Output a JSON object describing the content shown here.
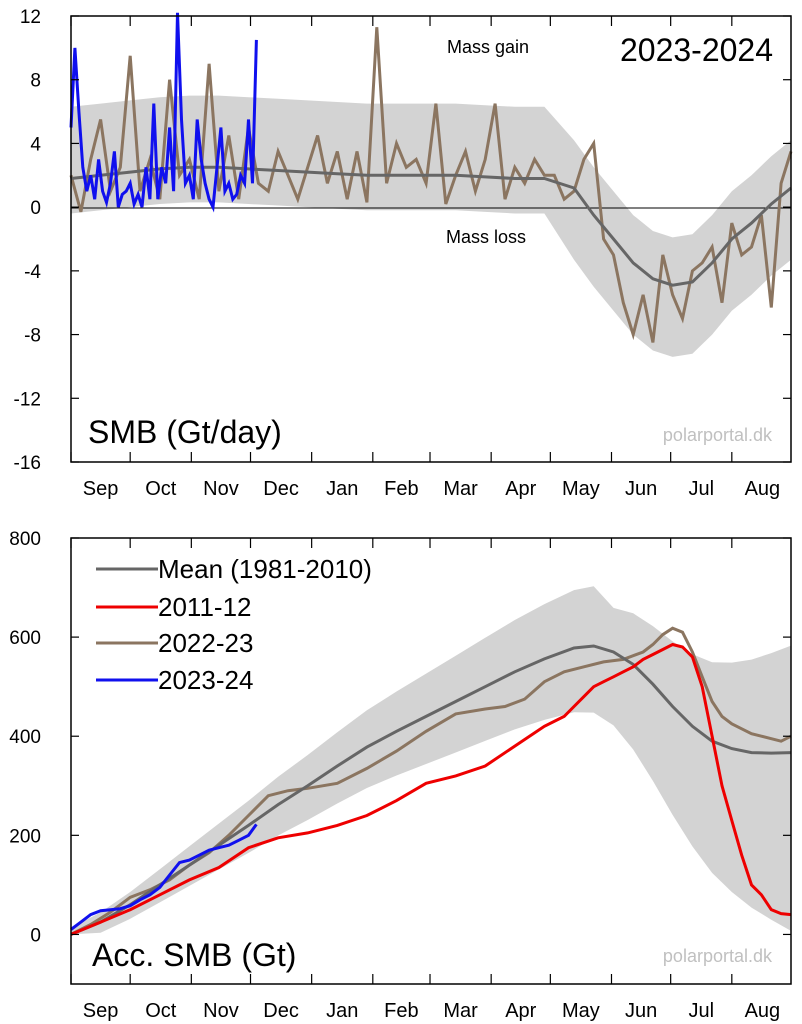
{
  "colors": {
    "band": "#d3d3d3",
    "mean": "#666666",
    "y2011": "#ee0000",
    "y2022": "#8b7560",
    "y2023": "#1010ee",
    "watermark": "#c0c0c0"
  },
  "months": [
    "Sep",
    "Oct",
    "Nov",
    "Dec",
    "Jan",
    "Feb",
    "Mar",
    "Apr",
    "May",
    "Jun",
    "Jul",
    "Aug"
  ],
  "chart_data": [
    {
      "type": "line",
      "title": "SMB (Gt/day)",
      "season": "2023-2024",
      "ylim": [
        -16,
        12
      ],
      "yticks": [
        -16,
        -12,
        -8,
        -4,
        0,
        4,
        8,
        12
      ],
      "annotations": {
        "gain": "Mass gain",
        "loss": "Mass loss"
      },
      "watermark": "polarportal.dk",
      "x_unit": "day of season starting 1 Sep",
      "series": [
        {
          "key": "mean",
          "x": [
            0,
            15,
            30,
            45,
            60,
            75,
            90,
            105,
            120,
            135,
            150,
            165,
            180,
            195,
            210,
            225,
            240,
            255,
            265,
            275,
            285,
            295,
            305,
            315,
            325,
            335,
            345,
            355,
            365
          ],
          "values": [
            1.8,
            2.0,
            2.2,
            2.4,
            2.5,
            2.5,
            2.4,
            2.3,
            2.2,
            2.1,
            2.0,
            2.0,
            2.0,
            2.0,
            1.9,
            1.8,
            1.8,
            1.2,
            -0.5,
            -2.0,
            -3.5,
            -4.5,
            -4.9,
            -4.7,
            -3.5,
            -2.0,
            -1.0,
            0.2,
            1.2
          ]
        },
        {
          "key": "y2022",
          "x": [
            0,
            5,
            10,
            15,
            20,
            25,
            30,
            35,
            40,
            45,
            50,
            55,
            60,
            65,
            70,
            75,
            80,
            85,
            90,
            95,
            100,
            105,
            110,
            115,
            120,
            125,
            130,
            135,
            140,
            145,
            150,
            155,
            160,
            165,
            170,
            175,
            180,
            185,
            190,
            195,
            200,
            205,
            210,
            215,
            220,
            225,
            230,
            235,
            240,
            245,
            250,
            255,
            260,
            265,
            270,
            275,
            280,
            285,
            290,
            295,
            300,
            305,
            310,
            315,
            320,
            325,
            330,
            335,
            340,
            345,
            350,
            355,
            360,
            365
          ],
          "values": [
            2.0,
            -0.3,
            3.0,
            5.5,
            1.0,
            2.5,
            9.5,
            1.0,
            3.0,
            0.5,
            8.0,
            2.0,
            3.0,
            0.5,
            9.0,
            1.0,
            4.5,
            0.5,
            5.0,
            1.5,
            1.0,
            3.5,
            2.0,
            0.5,
            2.5,
            4.5,
            1.5,
            3.5,
            0.5,
            3.5,
            0.3,
            11.3,
            1.5,
            4.0,
            2.5,
            3.0,
            1.5,
            6.5,
            0.2,
            2.0,
            3.5,
            1.0,
            3.0,
            6.5,
            0.5,
            2.5,
            1.5,
            3.0,
            2.0,
            2.0,
            0.5,
            1.0,
            3.0,
            4.0,
            -2.0,
            -3.0,
            -6.0,
            -8.0,
            -5.5,
            -8.5,
            -3.0,
            -5.5,
            -7.0,
            -4.0,
            -3.5,
            -2.5,
            -6.0,
            -1.0,
            -3.0,
            -2.5,
            -0.5,
            -6.3,
            1.5,
            3.5
          ]
        },
        {
          "key": "y2023",
          "x": [
            0,
            2,
            4,
            6,
            8,
            10,
            12,
            14,
            16,
            18,
            20,
            22,
            24,
            26,
            28,
            30,
            32,
            34,
            36,
            38,
            40,
            42,
            44,
            46,
            48,
            50,
            52,
            54,
            56,
            58,
            60,
            62,
            64,
            66,
            68,
            70,
            72,
            74,
            76,
            78,
            80,
            82,
            84,
            86,
            88,
            90,
            92,
            94
          ],
          "values": [
            5.0,
            10.0,
            6.0,
            2.5,
            1.0,
            2.0,
            0.5,
            3.0,
            1.0,
            0.3,
            1.5,
            3.5,
            0.0,
            0.8,
            1.0,
            1.5,
            0.2,
            0.8,
            0.0,
            2.5,
            0.5,
            6.5,
            0.5,
            2.5,
            1.5,
            5.0,
            1.0,
            12.2,
            5.5,
            1.5,
            2.0,
            0.5,
            5.5,
            3.0,
            1.5,
            0.5,
            0.0,
            2.5,
            5.0,
            1.0,
            1.5,
            0.5,
            0.8,
            2.0,
            1.5,
            5.5,
            1.5,
            10.5
          ]
        }
      ]
    },
    {
      "type": "line",
      "title": "Acc. SMB (Gt)",
      "ylim": [
        -100,
        800
      ],
      "yticks": [
        0,
        200,
        400,
        600,
        800
      ],
      "watermark": "polarportal.dk",
      "x_unit": "day of season starting 1 Sep",
      "series": [
        {
          "key": "mean",
          "name": "Mean (1981-2010)",
          "x": [
            0,
            15,
            30,
            45,
            60,
            75,
            90,
            105,
            120,
            135,
            150,
            165,
            180,
            195,
            210,
            225,
            240,
            255,
            265,
            275,
            285,
            295,
            305,
            315,
            325,
            335,
            345,
            355,
            365
          ],
          "values": [
            0,
            25,
            60,
            100,
            140,
            180,
            220,
            262,
            300,
            340,
            378,
            410,
            440,
            470,
            500,
            530,
            556,
            578,
            582,
            570,
            545,
            505,
            460,
            420,
            390,
            375,
            367,
            366,
            367
          ]
        },
        {
          "key": "y2011",
          "name": "2011-12",
          "x": [
            0,
            15,
            30,
            45,
            60,
            75,
            90,
            105,
            120,
            135,
            150,
            165,
            180,
            195,
            210,
            225,
            240,
            250,
            255,
            260,
            265,
            270,
            275,
            280,
            285,
            290,
            295,
            300,
            305,
            310,
            315,
            320,
            325,
            330,
            335,
            340,
            345,
            350,
            355,
            360,
            365
          ],
          "values": [
            0,
            25,
            50,
            80,
            110,
            135,
            175,
            195,
            205,
            220,
            240,
            270,
            305,
            320,
            340,
            380,
            420,
            440,
            460,
            480,
            500,
            510,
            520,
            530,
            540,
            555,
            565,
            575,
            585,
            580,
            560,
            500,
            400,
            300,
            230,
            160,
            100,
            80,
            50,
            42,
            40
          ]
        },
        {
          "key": "y2022",
          "name": "2022-23",
          "x": [
            0,
            10,
            20,
            30,
            40,
            50,
            60,
            70,
            80,
            90,
            100,
            110,
            120,
            135,
            150,
            165,
            180,
            195,
            210,
            220,
            230,
            240,
            250,
            260,
            270,
            280,
            290,
            295,
            300,
            305,
            310,
            315,
            320,
            325,
            330,
            335,
            340,
            345,
            350,
            355,
            360,
            365
          ],
          "values": [
            0,
            20,
            45,
            75,
            90,
            110,
            140,
            165,
            200,
            240,
            280,
            290,
            295,
            305,
            335,
            370,
            410,
            445,
            455,
            460,
            475,
            510,
            530,
            540,
            550,
            555,
            570,
            585,
            605,
            618,
            610,
            570,
            520,
            470,
            440,
            425,
            415,
            405,
            400,
            395,
            390,
            400
          ]
        },
        {
          "key": "y2023",
          "name": "2023-24",
          "x": [
            0,
            5,
            10,
            15,
            20,
            25,
            30,
            35,
            40,
            45,
            50,
            55,
            60,
            65,
            70,
            75,
            80,
            85,
            90,
            94
          ],
          "values": [
            10,
            25,
            40,
            48,
            50,
            52,
            58,
            70,
            80,
            95,
            120,
            145,
            150,
            160,
            170,
            175,
            180,
            190,
            200,
            222
          ]
        }
      ]
    }
  ]
}
